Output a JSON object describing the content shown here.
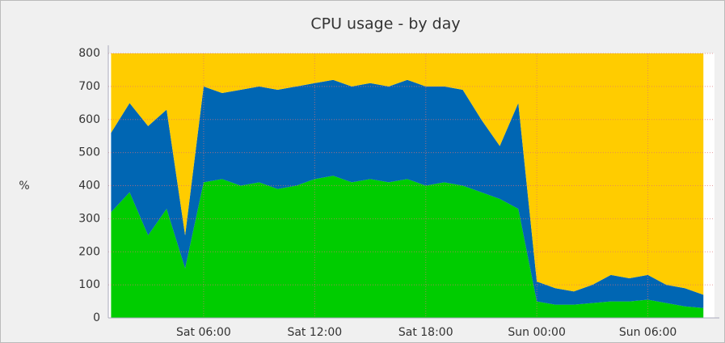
{
  "chart_data": {
    "type": "stacked-area",
    "title": "CPU usage - by day",
    "y_label": "%",
    "x": [
      1,
      2,
      3,
      4,
      5,
      6,
      7,
      8,
      9,
      10,
      11,
      12,
      13,
      14,
      15,
      16,
      17,
      18,
      19,
      20,
      21,
      22,
      23,
      24,
      25,
      26,
      27,
      28,
      29,
      30,
      31,
      32,
      33
    ],
    "xlim": [
      0.85,
      33.6
    ],
    "xticks": [
      {
        "value": 6,
        "label": "Sat 06:00"
      },
      {
        "value": 12,
        "label": "Sat 12:00"
      },
      {
        "value": 18,
        "label": "Sat 18:00"
      },
      {
        "value": 24,
        "label": "Sun 00:00"
      },
      {
        "value": 30,
        "label": "Sun 06:00"
      }
    ],
    "ylim": [
      0,
      800
    ],
    "yticks": [
      0,
      100,
      200,
      300,
      400,
      500,
      600,
      700,
      800
    ],
    "grid": true,
    "series": [
      {
        "color": "#00cc00",
        "values": [
          320,
          380,
          250,
          330,
          150,
          410,
          420,
          400,
          410,
          390,
          400,
          420,
          430,
          410,
          420,
          410,
          420,
          400,
          410,
          400,
          380,
          360,
          330,
          50,
          40,
          40,
          45,
          50,
          50,
          55,
          45,
          35,
          30
        ]
      },
      {
        "color": "#0066b3",
        "values": [
          240,
          270,
          330,
          300,
          100,
          290,
          260,
          290,
          290,
          300,
          300,
          290,
          290,
          290,
          290,
          290,
          300,
          300,
          290,
          290,
          220,
          160,
          320,
          60,
          50,
          40,
          55,
          80,
          70,
          75,
          55,
          55,
          40
        ]
      },
      {
        "color": "#ffcc00",
        "values": [
          240,
          150,
          220,
          170,
          550,
          100,
          120,
          110,
          100,
          110,
          100,
          90,
          80,
          100,
          90,
          100,
          80,
          100,
          100,
          110,
          200,
          280,
          150,
          690,
          710,
          720,
          700,
          670,
          680,
          670,
          700,
          710,
          730
        ]
      }
    ]
  }
}
